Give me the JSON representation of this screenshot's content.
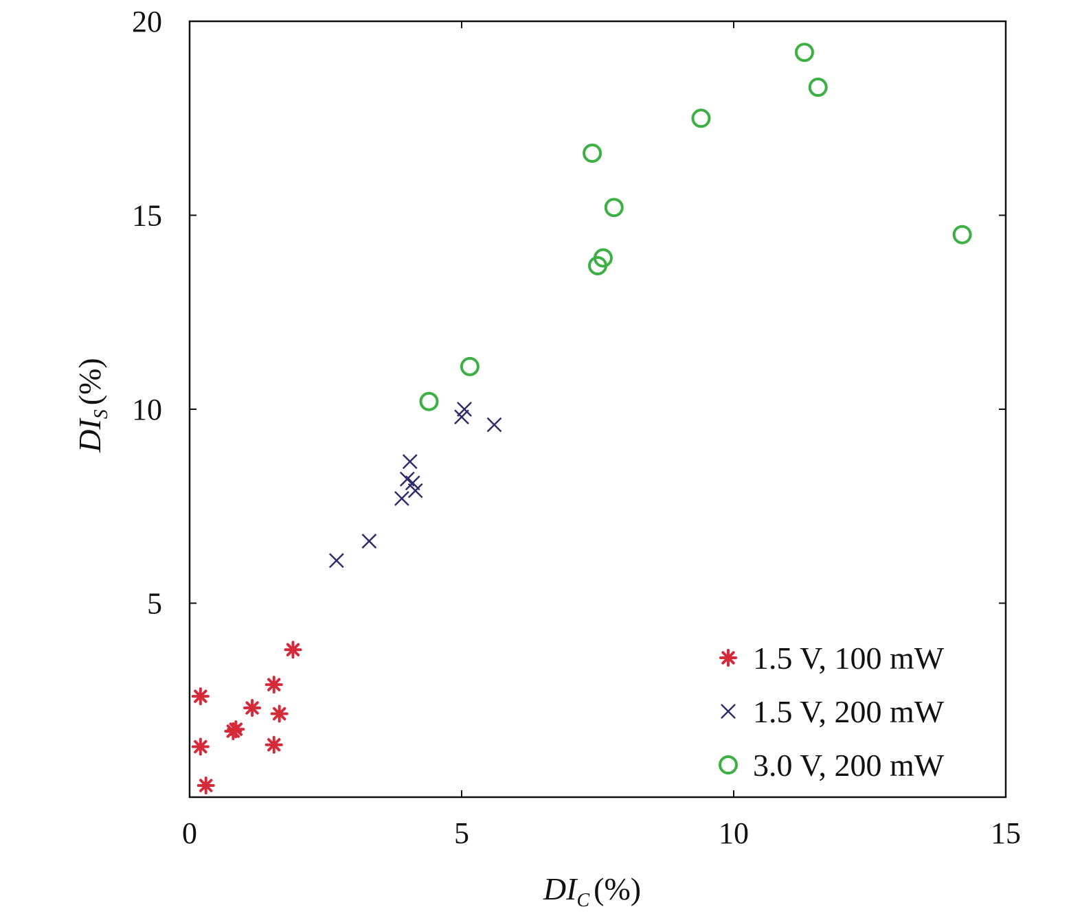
{
  "chart_data": {
    "type": "scatter",
    "title": "",
    "xlabel": {
      "main": "DI",
      "sub": "C",
      "unit": "(%)"
    },
    "ylabel": {
      "main": "DI",
      "sub": "S",
      "unit": "(%)"
    },
    "xlim": [
      0,
      15
    ],
    "ylim": [
      0,
      20
    ],
    "x_ticks": [
      "0",
      "5",
      "10",
      "15"
    ],
    "y_ticks": [
      "5",
      "10",
      "15",
      "20"
    ],
    "grid": false,
    "legend_position": "bottom-right",
    "series": [
      {
        "name": "1.5 V, 100 mW",
        "marker": "asterisk",
        "color": "#d42a3a",
        "points": [
          {
            "x": 0.2,
            "y": 2.6
          },
          {
            "x": 0.2,
            "y": 1.3
          },
          {
            "x": 0.3,
            "y": 0.3
          },
          {
            "x": 0.8,
            "y": 1.7
          },
          {
            "x": 0.85,
            "y": 1.75
          },
          {
            "x": 1.15,
            "y": 2.3
          },
          {
            "x": 1.55,
            "y": 2.9
          },
          {
            "x": 1.65,
            "y": 2.15
          },
          {
            "x": 1.55,
            "y": 1.35
          },
          {
            "x": 1.9,
            "y": 3.8
          }
        ]
      },
      {
        "name": "1.5 V, 200 mW",
        "marker": "cross",
        "color": "#2e2d6b",
        "points": [
          {
            "x": 2.7,
            "y": 6.1
          },
          {
            "x": 3.3,
            "y": 6.6
          },
          {
            "x": 3.9,
            "y": 7.7
          },
          {
            "x": 4.0,
            "y": 8.2
          },
          {
            "x": 4.05,
            "y": 8.65
          },
          {
            "x": 4.1,
            "y": 8.1
          },
          {
            "x": 4.15,
            "y": 7.9
          },
          {
            "x": 5.0,
            "y": 9.8
          },
          {
            "x": 5.05,
            "y": 10.0
          },
          {
            "x": 5.6,
            "y": 9.6
          }
        ]
      },
      {
        "name": "3.0 V, 200 mW",
        "marker": "circle",
        "color": "#3cb043",
        "points": [
          {
            "x": 4.4,
            "y": 10.2
          },
          {
            "x": 5.15,
            "y": 11.1
          },
          {
            "x": 7.4,
            "y": 16.6
          },
          {
            "x": 7.5,
            "y": 13.7
          },
          {
            "x": 7.6,
            "y": 13.9
          },
          {
            "x": 7.8,
            "y": 15.2
          },
          {
            "x": 9.4,
            "y": 17.5
          },
          {
            "x": 11.3,
            "y": 19.2
          },
          {
            "x": 11.55,
            "y": 18.3
          },
          {
            "x": 14.2,
            "y": 14.5
          }
        ]
      }
    ]
  }
}
